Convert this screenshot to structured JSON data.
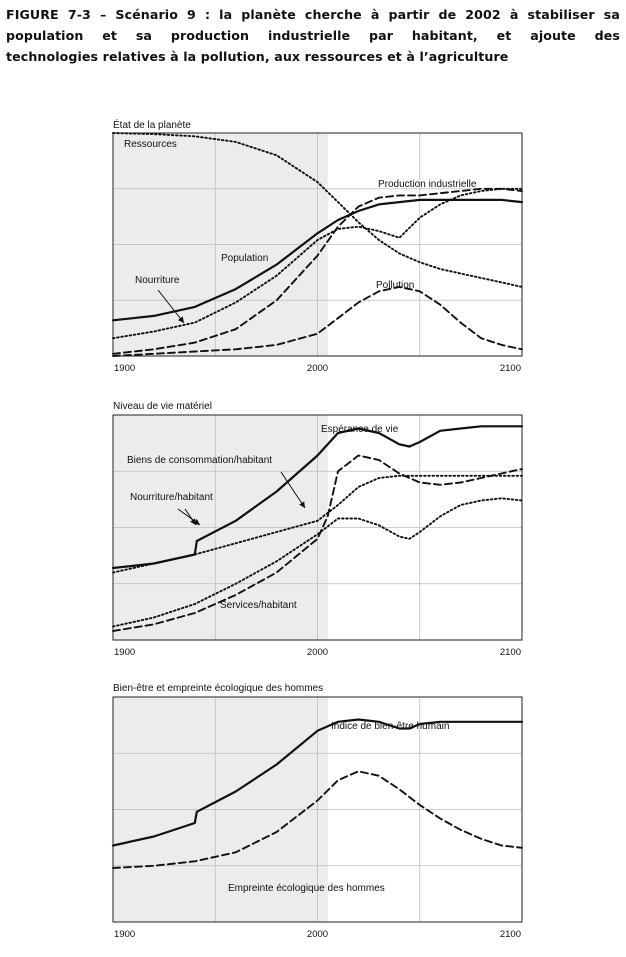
{
  "caption": {
    "line1": "FIGURE 7-3 – Scénario 9  : la planète cherche à partir de 2002 à stabiliser sa",
    "line2": "population et sa production industrielle par habitant, et ajoute des",
    "line3": "technologies relatives à la pollution, aux ressources et à l’agriculture"
  },
  "chart_data": [
    {
      "type": "line",
      "title": "État de la planète",
      "x_ticks": [
        "1900",
        "2000",
        "2100"
      ],
      "xlim": [
        1900,
        2100
      ],
      "ylim": [
        0,
        1
      ],
      "grid": true,
      "historical_shading": [
        1900,
        2005
      ],
      "series": [
        {
          "name": "Ressources",
          "style": "dotted",
          "x": [
            1900,
            1920,
            1940,
            1960,
            1980,
            2000,
            2010,
            2020,
            2030,
            2040,
            2050,
            2060,
            2070,
            2080,
            2090,
            2100
          ],
          "y": [
            1.0,
            0.995,
            0.985,
            0.96,
            0.9,
            0.78,
            0.69,
            0.6,
            0.52,
            0.46,
            0.42,
            0.39,
            0.37,
            0.35,
            0.33,
            0.31
          ]
        },
        {
          "name": "Production industrielle",
          "style": "dashed",
          "x": [
            1900,
            1920,
            1940,
            1960,
            1980,
            2000,
            2010,
            2020,
            2030,
            2040,
            2050,
            2060,
            2070,
            2080,
            2090,
            2100
          ],
          "y": [
            0.01,
            0.03,
            0.06,
            0.12,
            0.25,
            0.45,
            0.58,
            0.67,
            0.71,
            0.72,
            0.72,
            0.73,
            0.74,
            0.75,
            0.75,
            0.74
          ]
        },
        {
          "name": "Population",
          "style": "solid",
          "x": [
            1900,
            1920,
            1940,
            1960,
            1980,
            2000,
            2010,
            2020,
            2030,
            2040,
            2050,
            2060,
            2070,
            2080,
            2090,
            2100
          ],
          "y": [
            0.16,
            0.18,
            0.22,
            0.3,
            0.41,
            0.55,
            0.61,
            0.65,
            0.68,
            0.69,
            0.7,
            0.7,
            0.7,
            0.7,
            0.7,
            0.69
          ]
        },
        {
          "name": "Nourriture",
          "style": "dotted",
          "x": [
            1900,
            1920,
            1940,
            1960,
            1980,
            2000,
            2010,
            2020,
            2030,
            2040,
            2050,
            2060,
            2070,
            2080,
            2090,
            2100
          ],
          "y": [
            0.08,
            0.11,
            0.15,
            0.24,
            0.36,
            0.52,
            0.57,
            0.58,
            0.56,
            0.53,
            0.62,
            0.68,
            0.72,
            0.74,
            0.75,
            0.75
          ]
        },
        {
          "name": "Pollution",
          "style": "dashed",
          "x": [
            1900,
            1920,
            1940,
            1960,
            1980,
            2000,
            2010,
            2020,
            2030,
            2040,
            2050,
            2060,
            2070,
            2080,
            2090,
            2100
          ],
          "y": [
            0.0,
            0.01,
            0.02,
            0.03,
            0.05,
            0.1,
            0.17,
            0.24,
            0.29,
            0.31,
            0.29,
            0.23,
            0.15,
            0.08,
            0.05,
            0.03
          ]
        }
      ],
      "labels": [
        "Ressources",
        "Production industrielle",
        "Population",
        "Nourriture",
        "Pollution"
      ]
    },
    {
      "type": "line",
      "title": "Niveau de vie matériel",
      "x_ticks": [
        "1900",
        "2000",
        "2100"
      ],
      "xlim": [
        1900,
        2100
      ],
      "ylim": [
        0,
        1
      ],
      "grid": true,
      "historical_shading": [
        1900,
        2005
      ],
      "series": [
        {
          "name": "Espérance de vie",
          "style": "solid",
          "x": [
            1900,
            1920,
            1940,
            1941,
            1960,
            1980,
            2000,
            2010,
            2020,
            2030,
            2040,
            2045,
            2050,
            2060,
            2070,
            2080,
            2090,
            2100
          ],
          "y": [
            0.32,
            0.34,
            0.38,
            0.44,
            0.53,
            0.66,
            0.82,
            0.92,
            0.94,
            0.92,
            0.87,
            0.86,
            0.88,
            0.93,
            0.94,
            0.95,
            0.95,
            0.95
          ]
        },
        {
          "name": "Biens de consommation/habitant",
          "style": "dashed",
          "x": [
            1900,
            1920,
            1940,
            1960,
            1980,
            2000,
            2005,
            2010,
            2020,
            2030,
            2040,
            2050,
            2060,
            2070,
            2080,
            2090,
            2100
          ],
          "y": [
            0.04,
            0.07,
            0.12,
            0.2,
            0.3,
            0.45,
            0.55,
            0.75,
            0.82,
            0.8,
            0.74,
            0.7,
            0.69,
            0.7,
            0.72,
            0.74,
            0.76
          ]
        },
        {
          "name": "Nourriture/habitant",
          "style": "dotted",
          "x": [
            1900,
            1920,
            1940,
            1960,
            1980,
            2000,
            2010,
            2020,
            2030,
            2040,
            2050,
            2060,
            2070,
            2080,
            2090,
            2100
          ],
          "y": [
            0.3,
            0.34,
            0.38,
            0.43,
            0.48,
            0.53,
            0.6,
            0.68,
            0.72,
            0.73,
            0.73,
            0.73,
            0.73,
            0.73,
            0.73,
            0.73
          ]
        },
        {
          "name": "Services/habitant",
          "style": "dotted",
          "x": [
            1900,
            1920,
            1940,
            1960,
            1980,
            2000,
            2010,
            2020,
            2030,
            2040,
            2045,
            2050,
            2060,
            2070,
            2080,
            2090,
            2100
          ],
          "y": [
            0.06,
            0.1,
            0.16,
            0.25,
            0.35,
            0.47,
            0.54,
            0.54,
            0.51,
            0.46,
            0.45,
            0.48,
            0.55,
            0.6,
            0.62,
            0.63,
            0.62
          ]
        }
      ],
      "labels": [
        "Espérance de vie",
        "Biens de consommation/habitant",
        "Nourriture/habitant",
        "Services/habitant"
      ]
    },
    {
      "type": "line",
      "title": "Bien-être et empreinte écologique des hommes",
      "x_ticks": [
        "1900",
        "2000",
        "2100"
      ],
      "xlim": [
        1900,
        2100
      ],
      "ylim": [
        0,
        1
      ],
      "grid": true,
      "historical_shading": [
        1900,
        2005
      ],
      "series": [
        {
          "name": "Indice de bien-être humain",
          "style": "solid",
          "x": [
            1900,
            1920,
            1940,
            1941,
            1960,
            1980,
            2000,
            2010,
            2020,
            2030,
            2040,
            2045,
            2050,
            2060,
            2070,
            2080,
            2090,
            2100
          ],
          "y": [
            0.34,
            0.38,
            0.44,
            0.49,
            0.58,
            0.7,
            0.85,
            0.89,
            0.9,
            0.89,
            0.86,
            0.86,
            0.88,
            0.89,
            0.89,
            0.89,
            0.89,
            0.89
          ]
        },
        {
          "name": "Empreinte écologique des hommes",
          "style": "dashed",
          "x": [
            1900,
            1920,
            1940,
            1960,
            1980,
            2000,
            2010,
            2020,
            2030,
            2040,
            2050,
            2060,
            2070,
            2080,
            2090,
            2100
          ],
          "y": [
            0.24,
            0.25,
            0.27,
            0.31,
            0.4,
            0.54,
            0.63,
            0.67,
            0.65,
            0.59,
            0.52,
            0.46,
            0.41,
            0.37,
            0.34,
            0.33
          ]
        }
      ],
      "labels": [
        "Indice de bien-être humain",
        "Empreinte écologique des hommes"
      ]
    }
  ]
}
